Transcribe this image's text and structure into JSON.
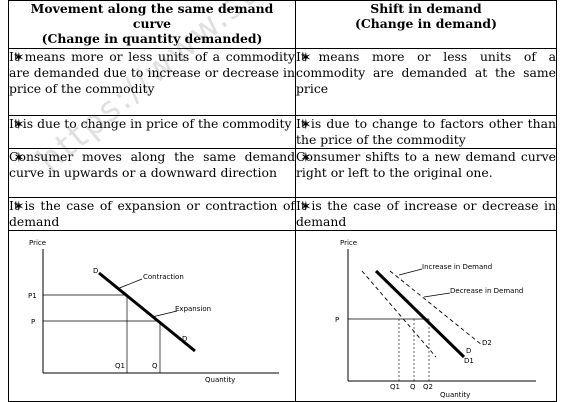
{
  "headers": {
    "left": [
      "Movement along the same demand",
      "curve",
      "(Change in quantity demanded)"
    ],
    "right": [
      "Shift in demand",
      "(Change in demand)"
    ]
  },
  "rows": [
    {
      "left": "It means more or less units of a commodity are demanded due to increase or decrease in price of the commodity",
      "right": "It means more or less units of a commodity are demanded at the same price"
    },
    {
      "left": "It is due to change in price of the commodity",
      "right": "It is due to change to factors other than the price of the commodity"
    },
    {
      "left": "Consumer moves along the same demand curve in upwards or a downward direction",
      "right": "Consumer shifts to a new demand curve right or left to the original one."
    },
    {
      "left": "It is the case of expansion or contraction of demand",
      "right": "It is the case of increase or decrease in demand"
    }
  ],
  "bullet": "✶",
  "watermark": "https://www.stud",
  "graph_left": {
    "y_label": "Price",
    "x_label": "Quantity",
    "p1": "P1",
    "p": "P",
    "q1": "Q1",
    "q": "Q",
    "d_top": "D",
    "d_bottom": "D",
    "contraction": "Contraction",
    "expansion": "Expansion"
  },
  "graph_right": {
    "y_label": "Price",
    "x_label": "Quantity",
    "p": "P",
    "q1": "Q1",
    "q": "Q",
    "q2": "Q2",
    "d": "D",
    "d1": "D1",
    "d2": "D2",
    "increase": "Increase in Demand",
    "decrease": "Decrease in Demand"
  }
}
